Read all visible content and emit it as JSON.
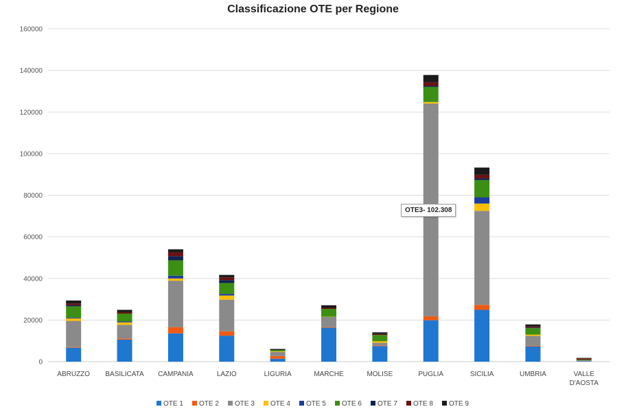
{
  "chart_data": {
    "type": "bar",
    "stacked": true,
    "title": "Classificazione OTE per Regione",
    "xlabel": "",
    "ylabel": "",
    "ylim": [
      0,
      160000
    ],
    "yticks": [
      "0",
      "20000",
      "40000",
      "60000",
      "80000",
      "100000",
      "120000",
      "140000",
      "160000"
    ],
    "grid": true,
    "legend_position": "bottom",
    "categories": [
      "ABRUZZO",
      "BASILICATA",
      "CAMPANIA",
      "LAZIO",
      "LIGURIA",
      "MARCHE",
      "MOLISE",
      "PUGLIA",
      "SICILIA",
      "UMBRIA",
      "VALLE D'AOSTA"
    ],
    "series": [
      {
        "name": "OTE 1",
        "color": "#1f77d0",
        "values": [
          6700,
          10600,
          13600,
          12500,
          1400,
          16300,
          7500,
          19900,
          24900,
          7300,
          200
        ]
      },
      {
        "name": "OTE 2",
        "color": "#f05a14",
        "values": [
          300,
          500,
          3000,
          2100,
          1300,
          300,
          300,
          1900,
          2400,
          300,
          0
        ]
      },
      {
        "name": "OTE 3",
        "color": "#8a8a8a",
        "values": [
          12600,
          6600,
          22300,
          15200,
          2000,
          4900,
          1300,
          102308,
          45200,
          4800,
          500
        ]
      },
      {
        "name": "OTE 4",
        "color": "#ffbf00",
        "values": [
          1200,
          1200,
          1100,
          2000,
          300,
          100,
          700,
          700,
          3500,
          600,
          0
        ]
      },
      {
        "name": "OTE 5",
        "color": "#1c3c9e",
        "values": [
          400,
          400,
          1300,
          800,
          0,
          0,
          0,
          0,
          3000,
          0,
          0
        ]
      },
      {
        "name": "OTE 6",
        "color": "#3c8f12",
        "values": [
          5400,
          3800,
          7400,
          5200,
          600,
          3800,
          3000,
          7300,
          8300,
          3100,
          300
        ]
      },
      {
        "name": "OTE 7",
        "color": "#0e2450",
        "values": [
          600,
          0,
          2000,
          1400,
          0,
          0,
          0,
          500,
          800,
          300,
          0
        ]
      },
      {
        "name": "OTE 8",
        "color": "#6b1212",
        "values": [
          800,
          800,
          1900,
          1300,
          0,
          500,
          500,
          1700,
          1700,
          500,
          600
        ]
      },
      {
        "name": "OTE 9",
        "color": "#1a1a1a",
        "values": [
          1400,
          1000,
          1400,
          1200,
          500,
          1200,
          800,
          3500,
          3500,
          1000,
          200
        ]
      }
    ],
    "annotation": "OTE3- 102.308"
  }
}
